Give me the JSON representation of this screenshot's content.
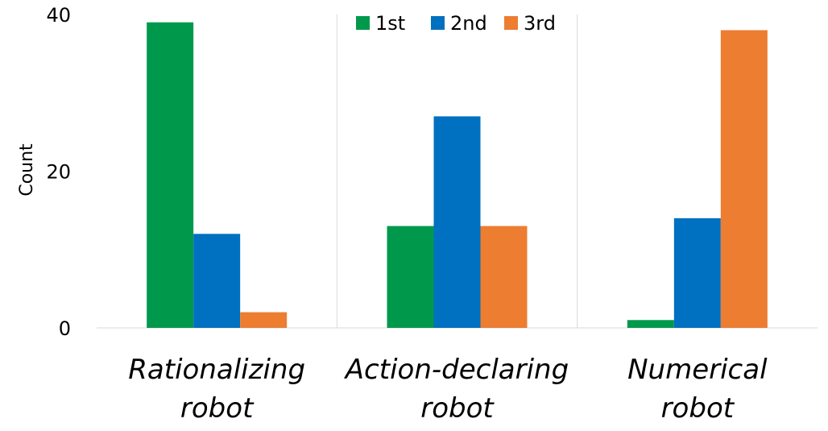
{
  "chart_data": {
    "type": "bar",
    "categories": [
      [
        "Rationalizing",
        "robot"
      ],
      [
        "Action-declaring",
        "robot"
      ],
      [
        "Numerical",
        "robot"
      ]
    ],
    "series": [
      {
        "name": "1st",
        "color": "#00994C",
        "values": [
          39,
          13,
          1
        ]
      },
      {
        "name": "2nd",
        "color": "#0070C0",
        "values": [
          12,
          27,
          14
        ]
      },
      {
        "name": "3rd",
        "color": "#ED7D31",
        "values": [
          2,
          13,
          38
        ]
      }
    ],
    "title": "",
    "xlabel": "",
    "ylabel": "Count",
    "ylim": [
      0,
      40
    ],
    "yticks": [
      0,
      20,
      40
    ],
    "grid": false,
    "legend_position": "top-center"
  }
}
